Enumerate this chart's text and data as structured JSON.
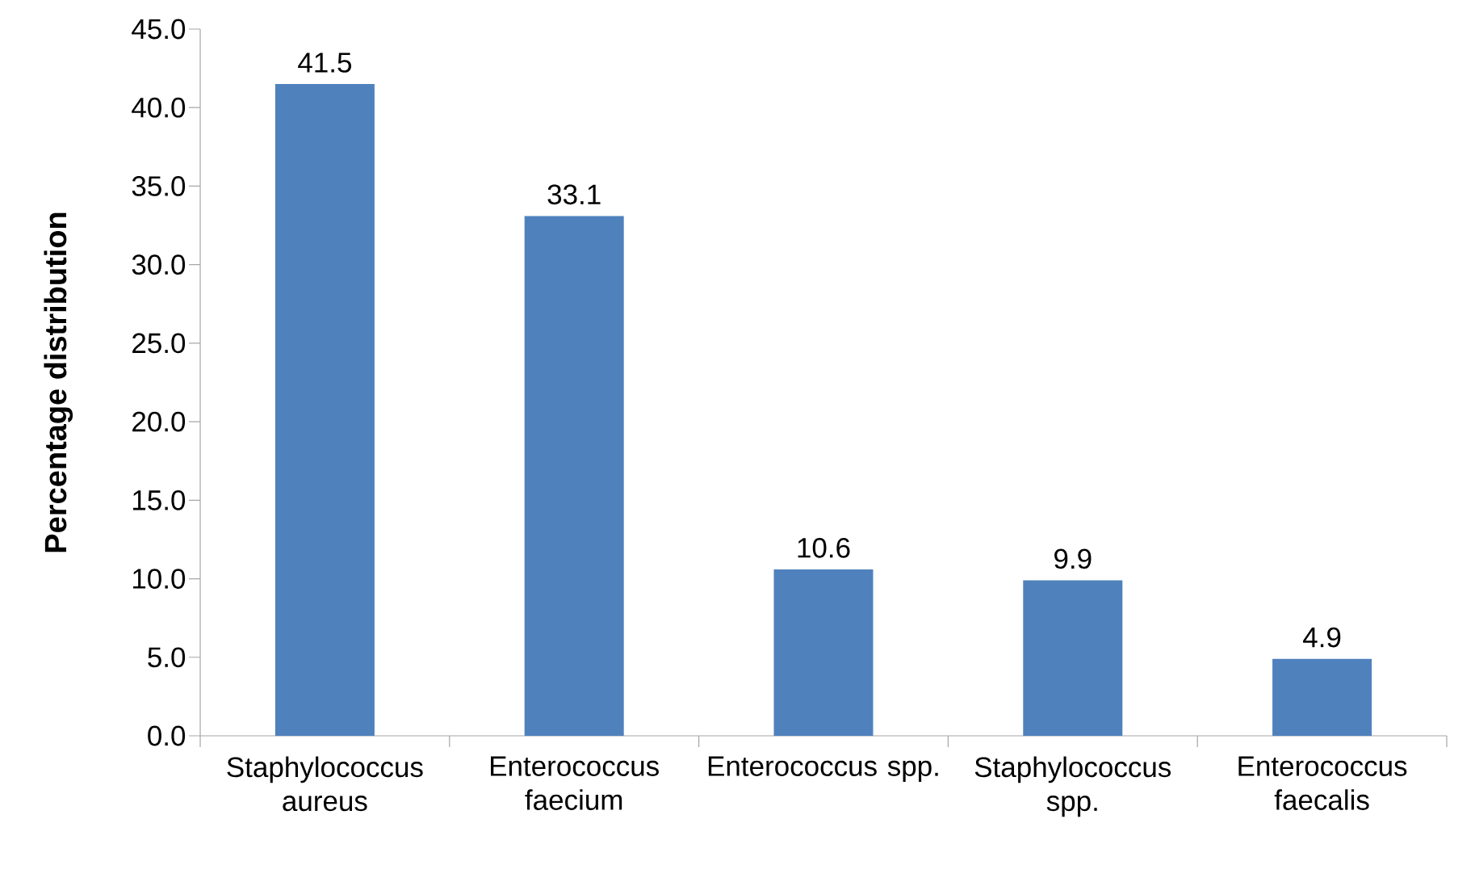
{
  "chart_data": {
    "type": "bar",
    "ylabel": "Percentage distribution",
    "categories": [
      "Staphylococcus aureus",
      "Enterococcus faecium",
      "Enterococcus spp.",
      "Staphylococcus spp.",
      "Enterococcus faecalis"
    ],
    "values": [
      41.5,
      33.1,
      10.6,
      9.9,
      4.9
    ],
    "color": "#4f81bd",
    "data_labels": true,
    "ylim": [
      0,
      45
    ],
    "yticks": [
      {
        "value": 0,
        "label": "0.0"
      },
      {
        "value": 5,
        "label": "5.0"
      },
      {
        "value": 10,
        "label": "10.0"
      },
      {
        "value": 15,
        "label": "15.0"
      },
      {
        "value": 20,
        "label": "20.0"
      },
      {
        "value": 25,
        "label": "25.0"
      },
      {
        "value": 30,
        "label": "30.0"
      },
      {
        "value": 35,
        "label": "35.0"
      },
      {
        "value": 40,
        "label": "40.0"
      },
      {
        "value": 45,
        "label": "45.0"
      }
    ]
  }
}
